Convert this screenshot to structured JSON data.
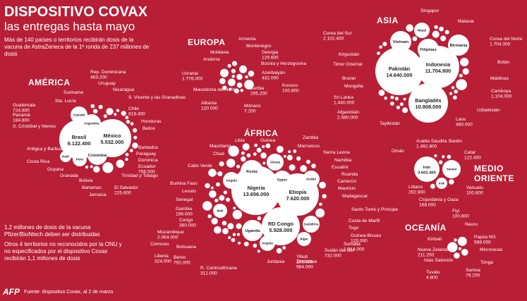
{
  "header": {
    "title": "DISPOSITIVO COVAX",
    "subtitle": "las entregas hasta mayo",
    "intro": "Más de 140 países o territorios recibirán dosis de la vacuna de AstraZeneca de la 1ª ronda de 237 millones de dosis"
  },
  "notes": {
    "pfizer": "1,2 millones de dosis de la vacuna Pfizer/BioNtech deben ser distribuidas",
    "others": "Otros 4 territorios no reconocidos por la ONU y no especificados por el dispositivo Covax recibirán 1,1 millones de dosis"
  },
  "regions": {
    "america": "AMÉRICA",
    "europa": "EUROPA",
    "asia": "ASIA",
    "africa": "ÁFRICA",
    "medio_oriente": "MEDIO ORIENTE",
    "oceania": "OCEANÍA"
  },
  "bubbles": {
    "america": [
      {
        "name": "Brasil",
        "value": "9.122.400"
      },
      {
        "name": "México",
        "value": "5.532.000"
      },
      {
        "name": "Canadá"
      },
      {
        "name": "Argentina"
      },
      {
        "name": "Colombia"
      },
      {
        "name": "Perú"
      },
      {
        "name": "Haití"
      }
    ],
    "europa": [],
    "asia": [
      {
        "name": "Pakistán",
        "value": "14.640.000"
      },
      {
        "name": "Indonesia",
        "value": "11.704.800"
      },
      {
        "name": "Bangladés",
        "value": "10.908.000"
      },
      {
        "name": "Vietnam"
      },
      {
        "name": "Filipinas"
      },
      {
        "name": "Birmania"
      },
      {
        "name": "Nepal"
      }
    ],
    "africa": [
      {
        "name": "Nigeria",
        "value": "13.656.000"
      },
      {
        "name": "Etiopía",
        "value": "7.620.000"
      },
      {
        "name": "RD Congo",
        "value": "5.928.000"
      },
      {
        "name": "Kenia"
      },
      {
        "name": "Ghana"
      },
      {
        "name": "Egipto"
      },
      {
        "name": "Sudán"
      },
      {
        "name": "Angola"
      },
      {
        "name": "Mali"
      },
      {
        "name": "Uganda"
      },
      {
        "name": "Sudáfrica"
      },
      {
        "name": "Argelia"
      },
      {
        "name": "Níger"
      }
    ],
    "medio_oriente": [
      {
        "name": "Irán",
        "value": "3.602.400"
      },
      {
        "name": "Yemen"
      },
      {
        "name": "Irak"
      }
    ]
  },
  "labels": [
    {
      "name": "Rep. Dominicana",
      "value": "463.200"
    },
    {
      "name": "Uruguay"
    },
    {
      "name": "Nicaragua"
    },
    {
      "name": "Suriname"
    },
    {
      "name": "Sta. Lucía"
    },
    {
      "name": "S. Vicente y las Granadinas"
    },
    {
      "name": "Guatemala",
      "value": "724.800"
    },
    {
      "name": "Panamá",
      "value": "184.800"
    },
    {
      "name": "S. Cristóbal y Nieves"
    },
    {
      "name": "Chile",
      "value": "818.400"
    },
    {
      "name": "Honduras"
    },
    {
      "name": "Belice"
    },
    {
      "name": "Barbados"
    },
    {
      "name": "Paraguay"
    },
    {
      "name": "Dominica"
    },
    {
      "name": "Antigua y Barbuda"
    },
    {
      "name": "Costa Rica"
    },
    {
      "name": "Ecuador",
      "value": "756.000"
    },
    {
      "name": "Trinidad y Tobago"
    },
    {
      "name": "Guyana"
    },
    {
      "name": "Granada"
    },
    {
      "name": "Bolivia"
    },
    {
      "name": "Bahamas"
    },
    {
      "name": "Jamaica"
    },
    {
      "name": "El Salvador",
      "value": "225.600"
    },
    {
      "name": "Armenia"
    },
    {
      "name": "Montenegro"
    },
    {
      "name": "Moldavia"
    },
    {
      "name": "Georgia",
      "value": "129.600"
    },
    {
      "name": "Andorra"
    },
    {
      "name": "Bosnia y Herzegovina"
    },
    {
      "name": "Azerbaiyán",
      "value": "432.000"
    },
    {
      "name": "Ucrania",
      "value": "1.776.000"
    },
    {
      "name": "Macedonia del Norte"
    },
    {
      "name": "Kosovo",
      "value": "100.800"
    },
    {
      "name": "Serbia",
      "value": "295.200"
    },
    {
      "name": "Albania",
      "value": "120 000"
    },
    {
      "name": "Mónaco",
      "value": "7.200"
    },
    {
      "name": "Singapur"
    },
    {
      "name": "Malasia"
    },
    {
      "name": "Corea del Sur",
      "value": "2.102.400"
    },
    {
      "name": "Corea del Norte",
      "value": "1.704.000"
    },
    {
      "name": "Kirguistán"
    },
    {
      "name": "Bután"
    },
    {
      "name": "Timor Oriental"
    },
    {
      "name": "Brunei"
    },
    {
      "name": "Maldivas"
    },
    {
      "name": "Mongolia"
    },
    {
      "name": "Camboya",
      "value": "1.104.000"
    },
    {
      "name": "Sri Lanka",
      "value": "1.440.000"
    },
    {
      "name": "Uzbekistán"
    },
    {
      "name": "Afganistán",
      "value": "2.580.000"
    },
    {
      "name": "Laos",
      "value": "480.000"
    },
    {
      "name": "Tayikistán"
    },
    {
      "name": "Libia"
    },
    {
      "name": "Guinea"
    },
    {
      "name": "Zambia"
    },
    {
      "name": "Marruecos"
    },
    {
      "name": "Mauritania"
    },
    {
      "name": "Sierra Leona"
    },
    {
      "name": "Chad"
    },
    {
      "name": "Namibia"
    },
    {
      "name": "Cabo Verde"
    },
    {
      "name": "Esuatini"
    },
    {
      "name": "Túnez"
    },
    {
      "name": "Ruanda"
    },
    {
      "name": "Burkina Faso"
    },
    {
      "name": "Camerún"
    },
    {
      "name": "Lesoto"
    },
    {
      "name": "Mauricio"
    },
    {
      "name": "Senegal"
    },
    {
      "name": "Madagascar"
    },
    {
      "name": "Gambia",
      "value": "156.000"
    },
    {
      "name": "Santo Tomé y Príncipe"
    },
    {
      "name": "Congo",
      "value": "360.000"
    },
    {
      "name": "Costa de Marfil"
    },
    {
      "name": "Mozambique",
      "value": "2.064.000"
    },
    {
      "name": "Togo"
    },
    {
      "name": "Comoras"
    },
    {
      "name": "Guinea-Bissau",
      "value": "120.000"
    },
    {
      "name": "Botsuana"
    },
    {
      "name": "Somalia",
      "value": "1.044.000"
    },
    {
      "name": "Liberia",
      "value": "324.000"
    },
    {
      "name": "Sudán del Sur",
      "value": "732.000"
    },
    {
      "name": "Benín",
      "value": "792.000"
    },
    {
      "name": "Yibuti",
      "value": "108.000"
    },
    {
      "name": "R. Centroafricana",
      "value": "312.000"
    },
    {
      "name": "Zimbabue",
      "value": "984.000"
    },
    {
      "name": "Jordania"
    },
    {
      "name": "Arabia Saudita",
      "value": "1.492.800"
    },
    {
      "name": "Baréin"
    },
    {
      "name": "Omán"
    },
    {
      "name": "Catar",
      "value": "122.400"
    },
    {
      "name": "Líbano",
      "value": "292.800"
    },
    {
      "name": "Cisjordania y Gaza",
      "value": "168.000"
    },
    {
      "name": "Vanuatu",
      "value": "100.800"
    },
    {
      "name": "Fiyi",
      "value": "100.800"
    },
    {
      "name": "Nauru"
    },
    {
      "name": "Kiribati"
    },
    {
      "name": "Papúa NG",
      "value": "588.000"
    },
    {
      "name": "Nueva Zelanda",
      "value": "211.200"
    },
    {
      "name": "Micronesia"
    },
    {
      "name": "Tonga"
    },
    {
      "name": "Islas Salomón"
    },
    {
      "name": "Samoa",
      "value": "79.200"
    },
    {
      "name": "Tuvalu",
      "value": "4.800"
    }
  ],
  "footer": {
    "logo": "AFP",
    "source": "Fuente: dispositivo Covax, al 2 de marzo"
  }
}
